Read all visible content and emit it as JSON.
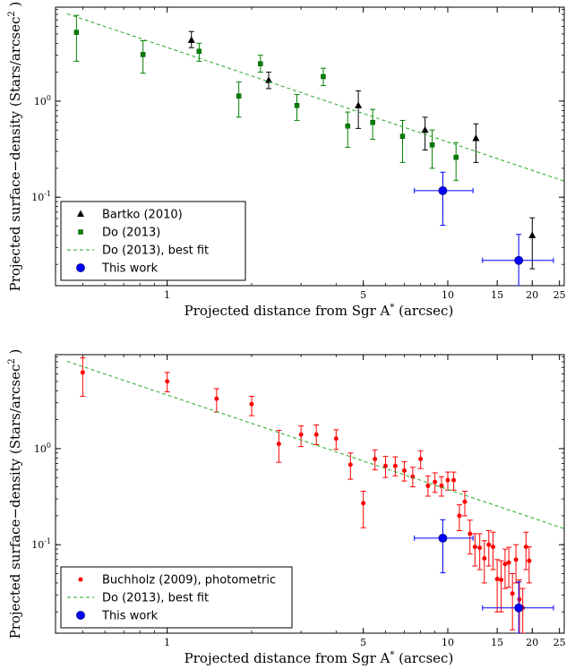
{
  "chart_data": [
    {
      "type": "scatter",
      "xlabel": "Projected distance from Sgr A$^*$ (arcsec)",
      "xlabel_main": "Projected distance from Sgr A",
      "xlabel_sup": "*",
      "xlabel_tail": " (arcsec)",
      "ylabel_main": "Projected surface−density (Stars/arcsec",
      "ylabel_sup": "2",
      "ylabel_tail": ")",
      "x_scale": "log",
      "y_scale": "log",
      "xlim": [
        0.4,
        26
      ],
      "ylim": [
        0.012,
        9.5
      ],
      "x_ticks": [
        {
          "value": 1,
          "label": "1"
        },
        {
          "value": 5,
          "label": "5"
        },
        {
          "value": 10,
          "label": "10"
        },
        {
          "value": 15,
          "label": "15"
        },
        {
          "value": 20,
          "label": "20"
        },
        {
          "value": 25,
          "label": "25"
        }
      ],
      "y_ticks": [
        {
          "value": 0.1,
          "base": "10",
          "exp": "-1"
        },
        {
          "value": 1,
          "base": "10",
          "exp": "0"
        }
      ],
      "legend_position": "lower-left",
      "series": [
        {
          "name": "Bartko (2010)",
          "marker": "triangle",
          "color": "#000000",
          "points": [
            {
              "x": 1.22,
              "y": 4.3,
              "lo": 3.6,
              "hi": 5.3
            },
            {
              "x": 2.3,
              "y": 1.65,
              "lo": 1.35,
              "hi": 2.0
            },
            {
              "x": 4.8,
              "y": 0.9,
              "lo": 0.52,
              "hi": 1.28
            },
            {
              "x": 8.3,
              "y": 0.5,
              "lo": 0.31,
              "hi": 0.68
            },
            {
              "x": 12.6,
              "y": 0.41,
              "lo": 0.23,
              "hi": 0.58
            },
            {
              "x": 20.0,
              "y": 0.04,
              "lo": 0.018,
              "hi": 0.061
            }
          ]
        },
        {
          "name": "Do (2013)",
          "marker": "square",
          "color": "#008000",
          "points": [
            {
              "x": 0.475,
              "y": 5.2,
              "lo": 2.6,
              "hi": 7.8
            },
            {
              "x": 0.82,
              "y": 3.05,
              "lo": 1.95,
              "hi": 4.25
            },
            {
              "x": 1.3,
              "y": 3.3,
              "lo": 2.6,
              "hi": 4.0
            },
            {
              "x": 1.8,
              "y": 1.13,
              "lo": 0.68,
              "hi": 1.58
            },
            {
              "x": 2.15,
              "y": 2.45,
              "lo": 2.0,
              "hi": 3.0
            },
            {
              "x": 2.9,
              "y": 0.9,
              "lo": 0.63,
              "hi": 1.17
            },
            {
              "x": 3.6,
              "y": 1.8,
              "lo": 1.45,
              "hi": 2.2
            },
            {
              "x": 4.4,
              "y": 0.55,
              "lo": 0.33,
              "hi": 0.77
            },
            {
              "x": 5.4,
              "y": 0.6,
              "lo": 0.4,
              "hi": 0.82
            },
            {
              "x": 6.9,
              "y": 0.43,
              "lo": 0.23,
              "hi": 0.63
            },
            {
              "x": 8.8,
              "y": 0.35,
              "lo": 0.2,
              "hi": 0.5
            },
            {
              "x": 10.7,
              "y": 0.26,
              "lo": 0.15,
              "hi": 0.37
            }
          ]
        },
        {
          "name": "Do (2013), best fit",
          "marker": "dashed-line",
          "color": "#22aa22",
          "line": [
            {
              "x": 0.44,
              "y": 8.1
            },
            {
              "x": 26,
              "y": 0.147
            }
          ]
        },
        {
          "name": "This work",
          "marker": "circle",
          "color": "#0000ff",
          "points": [
            {
              "x": 9.6,
              "y": 0.117,
              "lo": 0.051,
              "hi": 0.182,
              "xlo": 7.6,
              "xhi": 12.3
            },
            {
              "x": 17.9,
              "y": 0.022,
              "lo": 0.012,
              "hi": 0.041,
              "xlo": 13.3,
              "xhi": 23.8
            }
          ]
        }
      ]
    },
    {
      "type": "scatter",
      "xlabel": "Projected distance from Sgr A$^*$ (arcsec)",
      "xlabel_main": "Projected distance from Sgr A",
      "xlabel_sup": "*",
      "xlabel_tail": " (arcsec)",
      "ylabel_main": "Projected surface−density (Stars/arcsec",
      "ylabel_sup": "2",
      "ylabel_tail": ")",
      "x_scale": "log",
      "y_scale": "log",
      "xlim": [
        0.4,
        26
      ],
      "ylim": [
        0.012,
        9.5
      ],
      "x_ticks": [
        {
          "value": 1,
          "label": "1"
        },
        {
          "value": 5,
          "label": "5"
        },
        {
          "value": 10,
          "label": "10"
        },
        {
          "value": 15,
          "label": "15"
        },
        {
          "value": 20,
          "label": "20"
        },
        {
          "value": 25,
          "label": "25"
        }
      ],
      "y_ticks": [
        {
          "value": 0.1,
          "base": "10",
          "exp": "-1"
        },
        {
          "value": 1,
          "base": "10",
          "exp": "0"
        }
      ],
      "legend_position": "lower-left",
      "series": [
        {
          "name": "Buchholz (2009), photometric",
          "marker": "dot",
          "color": "#ff0000",
          "points": [
            {
              "x": 0.5,
              "y": 6.2,
              "lo": 3.5,
              "hi": 8.8
            },
            {
              "x": 1.0,
              "y": 5.0,
              "lo": 3.9,
              "hi": 6.2
            },
            {
              "x": 1.5,
              "y": 3.3,
              "lo": 2.4,
              "hi": 4.2
            },
            {
              "x": 2.0,
              "y": 2.9,
              "lo": 2.2,
              "hi": 3.5
            },
            {
              "x": 2.5,
              "y": 1.12,
              "lo": 0.72,
              "hi": 1.55
            },
            {
              "x": 3.0,
              "y": 1.4,
              "lo": 1.05,
              "hi": 1.72
            },
            {
              "x": 3.4,
              "y": 1.4,
              "lo": 1.1,
              "hi": 1.76
            },
            {
              "x": 4.0,
              "y": 1.27,
              "lo": 0.98,
              "hi": 1.57
            },
            {
              "x": 4.5,
              "y": 0.68,
              "lo": 0.48,
              "hi": 0.9
            },
            {
              "x": 5.0,
              "y": 0.27,
              "lo": 0.15,
              "hi": 0.36
            },
            {
              "x": 5.5,
              "y": 0.78,
              "lo": 0.6,
              "hi": 0.97
            },
            {
              "x": 6.0,
              "y": 0.66,
              "lo": 0.5,
              "hi": 0.83
            },
            {
              "x": 6.5,
              "y": 0.66,
              "lo": 0.52,
              "hi": 0.82
            },
            {
              "x": 7.0,
              "y": 0.59,
              "lo": 0.46,
              "hi": 0.73
            },
            {
              "x": 7.5,
              "y": 0.51,
              "lo": 0.4,
              "hi": 0.64
            },
            {
              "x": 8.0,
              "y": 0.78,
              "lo": 0.62,
              "hi": 0.95
            },
            {
              "x": 8.5,
              "y": 0.41,
              "lo": 0.32,
              "hi": 0.52
            },
            {
              "x": 9.0,
              "y": 0.45,
              "lo": 0.35,
              "hi": 0.56
            },
            {
              "x": 9.5,
              "y": 0.41,
              "lo": 0.32,
              "hi": 0.51
            },
            {
              "x": 10.0,
              "y": 0.47,
              "lo": 0.37,
              "hi": 0.57
            },
            {
              "x": 10.5,
              "y": 0.47,
              "lo": 0.37,
              "hi": 0.57
            },
            {
              "x": 11.0,
              "y": 0.2,
              "lo": 0.14,
              "hi": 0.26
            },
            {
              "x": 11.5,
              "y": 0.28,
              "lo": 0.2,
              "hi": 0.36
            },
            {
              "x": 12.0,
              "y": 0.13,
              "lo": 0.08,
              "hi": 0.18
            },
            {
              "x": 12.5,
              "y": 0.095,
              "lo": 0.06,
              "hi": 0.13
            },
            {
              "x": 13.0,
              "y": 0.093,
              "lo": 0.055,
              "hi": 0.13
            },
            {
              "x": 13.5,
              "y": 0.072,
              "lo": 0.04,
              "hi": 0.11
            },
            {
              "x": 14.0,
              "y": 0.1,
              "lo": 0.06,
              "hi": 0.14
            },
            {
              "x": 14.5,
              "y": 0.095,
              "lo": 0.055,
              "hi": 0.135
            },
            {
              "x": 15.0,
              "y": 0.044,
              "lo": 0.02,
              "hi": 0.07
            },
            {
              "x": 15.5,
              "y": 0.043,
              "lo": 0.02,
              "hi": 0.068
            },
            {
              "x": 16.0,
              "y": 0.063,
              "lo": 0.035,
              "hi": 0.09
            },
            {
              "x": 16.5,
              "y": 0.065,
              "lo": 0.036,
              "hi": 0.094
            },
            {
              "x": 17.0,
              "y": 0.031,
              "lo": 0.013,
              "hi": 0.05
            },
            {
              "x": 17.5,
              "y": 0.07,
              "lo": 0.04,
              "hi": 0.1
            },
            {
              "x": 18.0,
              "y": 0.027,
              "lo": 0.012,
              "hi": 0.043
            },
            {
              "x": 18.5,
              "y": 0.022,
              "lo": 0.012,
              "hi": 0.035
            },
            {
              "x": 19.0,
              "y": 0.095,
              "lo": 0.055,
              "hi": 0.135
            },
            {
              "x": 19.5,
              "y": 0.068,
              "lo": 0.04,
              "hi": 0.095
            }
          ]
        },
        {
          "name": "Do (2013), best fit",
          "marker": "dashed-line",
          "color": "#22aa22",
          "line": [
            {
              "x": 0.44,
              "y": 8.1
            },
            {
              "x": 26,
              "y": 0.147
            }
          ]
        },
        {
          "name": "This work",
          "marker": "circle",
          "color": "#0000ff",
          "points": [
            {
              "x": 9.6,
              "y": 0.117,
              "lo": 0.051,
              "hi": 0.182,
              "xlo": 7.6,
              "xhi": 12.3
            },
            {
              "x": 17.9,
              "y": 0.022,
              "lo": 0.012,
              "hi": 0.041,
              "xlo": 13.3,
              "xhi": 23.8
            }
          ]
        }
      ]
    }
  ]
}
